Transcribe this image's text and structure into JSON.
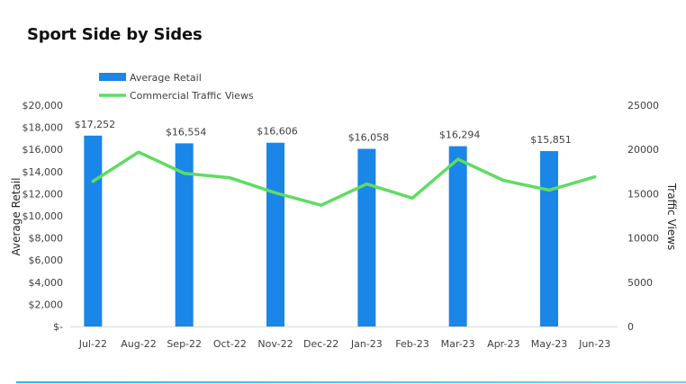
{
  "title": "Sport Side by Sides",
  "chart_data": {
    "type": "bar",
    "title": "Sport Side by Sides",
    "categories": [
      "Jul-22",
      "Aug-22",
      "Sep-22",
      "Oct-22",
      "Nov-22",
      "Dec-22",
      "Jan-23",
      "Feb-23",
      "Mar-23",
      "Apr-23",
      "May-23",
      "Jun-23"
    ],
    "ylabel": "Average Retail",
    "y2label": "Traffic Views",
    "ylim": [
      0,
      20000
    ],
    "y2lim": [
      0,
      25000
    ],
    "yticks": [
      "$-",
      "$2,000",
      "$4,000",
      "$6,000",
      "$8,000",
      "$10,000",
      "$12,000",
      "$14,000",
      "$16,000",
      "$18,000",
      "$20,000"
    ],
    "y2ticks": [
      "0",
      "5000",
      "10000",
      "15000",
      "20000",
      "25000"
    ],
    "legend_position": "top-left",
    "grid": false,
    "series": [
      {
        "name": "Average Retail",
        "type": "bar",
        "axis": "left",
        "color": "#1a86e8",
        "values": [
          17252,
          null,
          16554,
          null,
          16606,
          null,
          16058,
          null,
          16294,
          null,
          15851,
          null
        ],
        "labels": [
          "$17,252",
          "",
          "$16,554",
          "",
          "$16,606",
          "",
          "$16,058",
          "",
          "$16,294",
          "",
          "$15,851",
          ""
        ]
      },
      {
        "name": "Commercial Traffic Views",
        "type": "line",
        "axis": "right",
        "color": "#5fdc63",
        "values": [
          16400,
          19700,
          17300,
          16800,
          15100,
          13700,
          16100,
          14500,
          18900,
          16500,
          15400,
          16900
        ]
      }
    ]
  }
}
